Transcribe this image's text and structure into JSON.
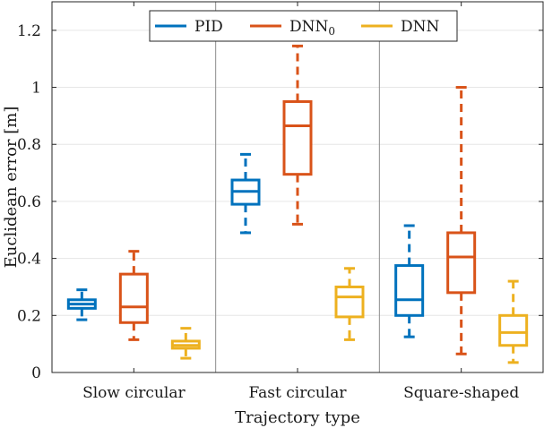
{
  "chart_data": {
    "type": "boxplot",
    "title": "",
    "xlabel": "Trajectory type",
    "ylabel": "Euclidean error [m]",
    "ylim": [
      0,
      1.3
    ],
    "yticks": [
      0,
      0.2,
      0.4,
      0.6,
      0.8,
      1,
      1.2
    ],
    "ytick_labels": [
      "0",
      "0.2",
      "0.4",
      "0.6",
      "0.8",
      "1",
      "1.2"
    ],
    "categories": [
      "Slow circular",
      "Fast circular",
      "Square-shaped"
    ],
    "grid": true,
    "legend_position": "top-center",
    "series": [
      {
        "name": "PID",
        "color": "#0072BD",
        "boxes": [
          {
            "whisker_low": 0.185,
            "q1": 0.225,
            "median": 0.24,
            "q3": 0.255,
            "whisker_high": 0.29
          },
          {
            "whisker_low": 0.49,
            "q1": 0.59,
            "median": 0.635,
            "q3": 0.675,
            "whisker_high": 0.765
          },
          {
            "whisker_low": 0.125,
            "q1": 0.2,
            "median": 0.255,
            "q3": 0.375,
            "whisker_high": 0.515
          }
        ]
      },
      {
        "name": "DNN",
        "name_subscript": "0",
        "color": "#D95319",
        "boxes": [
          {
            "whisker_low": 0.115,
            "q1": 0.175,
            "median": 0.23,
            "q3": 0.345,
            "whisker_high": 0.425
          },
          {
            "whisker_low": 0.52,
            "q1": 0.695,
            "median": 0.865,
            "q3": 0.95,
            "whisker_high": 1.145
          },
          {
            "whisker_low": 0.065,
            "q1": 0.28,
            "median": 0.405,
            "q3": 0.49,
            "whisker_high": 1.0
          }
        ]
      },
      {
        "name": "DNN",
        "color": "#EDB120",
        "boxes": [
          {
            "whisker_low": 0.05,
            "q1": 0.085,
            "median": 0.095,
            "q3": 0.11,
            "whisker_high": 0.155
          },
          {
            "whisker_low": 0.115,
            "q1": 0.195,
            "median": 0.265,
            "q3": 0.3,
            "whisker_high": 0.365
          },
          {
            "whisker_low": 0.035,
            "q1": 0.095,
            "median": 0.14,
            "q3": 0.2,
            "whisker_high": 0.32
          }
        ]
      }
    ]
  }
}
